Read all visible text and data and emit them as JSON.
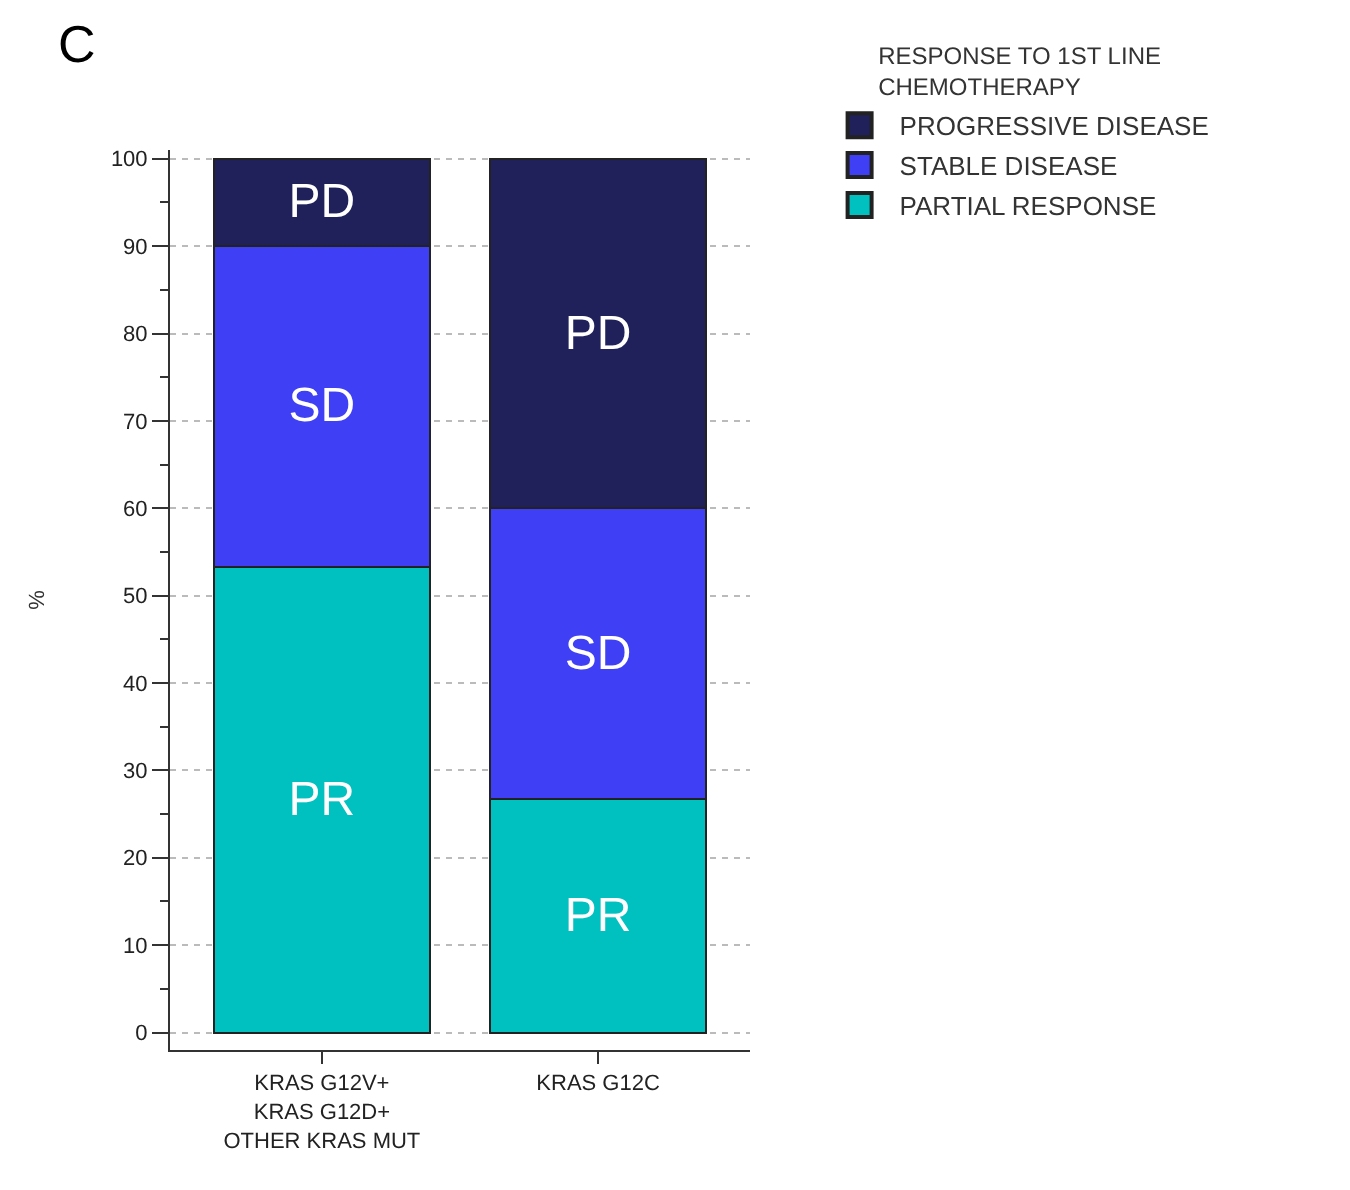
{
  "chart_data": {
    "type": "bar",
    "stacked": true,
    "categories": [
      "KRAS G12V+\nKRAS G12D+\nOTHER KRAS MUT",
      "KRAS G12C"
    ],
    "series": [
      {
        "name": "PARTIAL RESPONSE",
        "color": "#00c0c0",
        "values": [
          53.3,
          26.7
        ]
      },
      {
        "name": "STABLE DISEASE",
        "color": "#3f3ff5",
        "values": [
          36.7,
          33.3
        ]
      },
      {
        "name": "PROGRESSIVE DISEASE",
        "color": "#20215a",
        "values": [
          10,
          40
        ]
      }
    ],
    "ylabel": "%",
    "legend_title": "RESPONSE TO 1ST LINE\nCHEMOTHERAPY",
    "legend": "top right",
    "ylim": [
      -2,
      101
    ],
    "yticks": [
      0,
      10,
      20,
      30,
      40,
      50,
      60,
      70,
      80,
      90,
      100
    ],
    "grid": "y",
    "annotations": [
      "C",
      "PD",
      "SD",
      "PR",
      "PD",
      "SD",
      "PR"
    ]
  }
}
